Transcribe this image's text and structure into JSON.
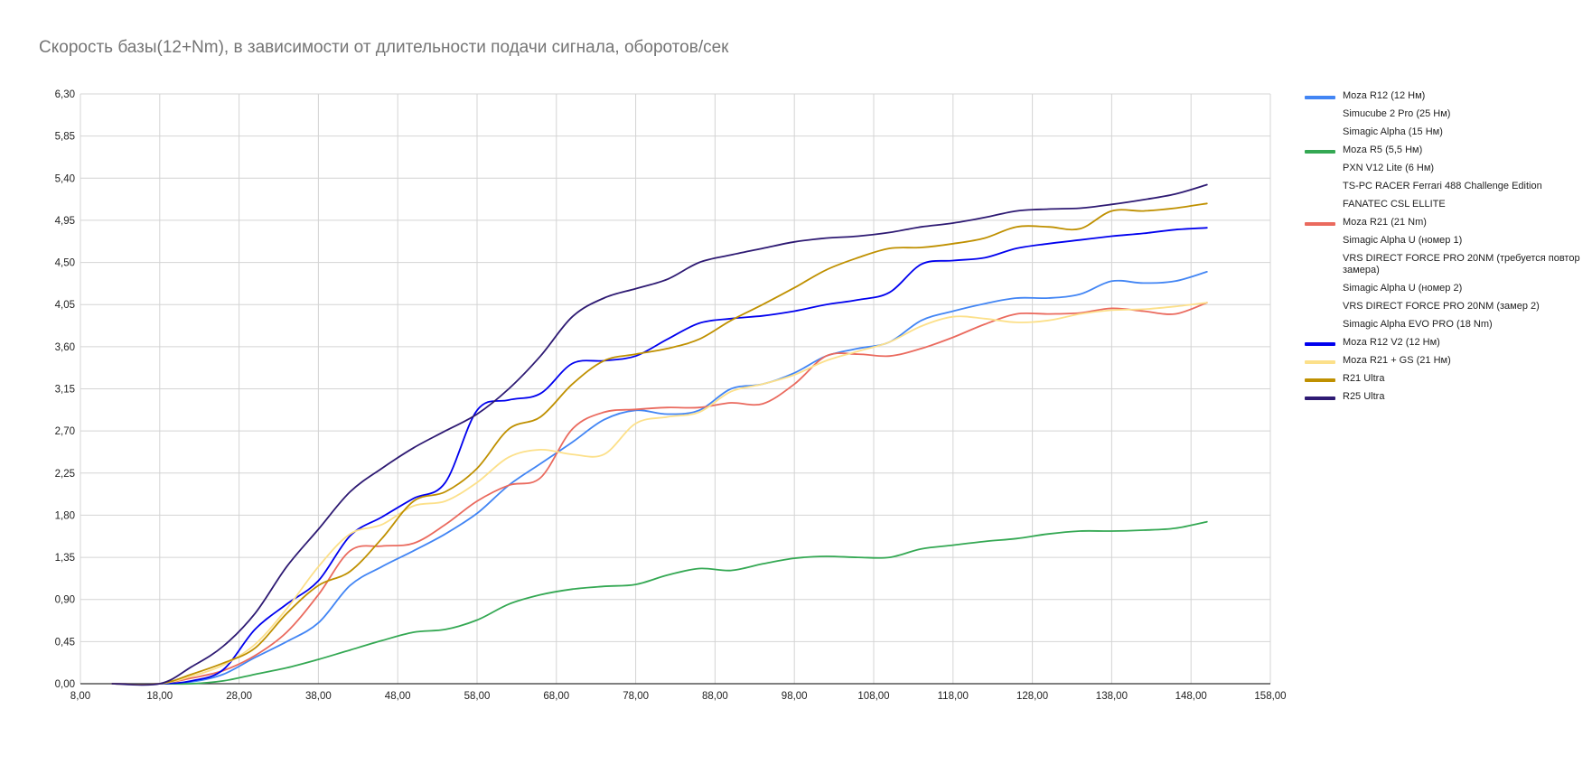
{
  "chart_data": {
    "type": "line",
    "title": "Скорость базы(12+Nm), в зависимости от длительности подачи сигнала, оборотов/сек",
    "xlabel": "",
    "ylabel": "",
    "xlim": [
      8,
      158
    ],
    "ylim": [
      0,
      6.3
    ],
    "x_ticks": [
      "8,00",
      "18,00",
      "28,00",
      "38,00",
      "48,00",
      "58,00",
      "68,00",
      "78,00",
      "88,00",
      "98,00",
      "108,00",
      "118,00",
      "128,00",
      "138,00",
      "148,00",
      "158,00"
    ],
    "y_ticks": [
      "0,00",
      "0,45",
      "0,90",
      "1,35",
      "1,80",
      "2,25",
      "2,70",
      "3,15",
      "3,60",
      "4,05",
      "4,50",
      "4,95",
      "5,40",
      "5,85",
      "6,30"
    ],
    "grid": true,
    "legend_position": "right",
    "series": [
      {
        "name": "Moza R12 (12 Нм)",
        "color": "#4285f4",
        "points": [
          [
            12,
            0
          ],
          [
            18,
            0
          ],
          [
            22,
            0.02
          ],
          [
            26,
            0.1
          ],
          [
            30,
            0.28
          ],
          [
            34,
            0.45
          ],
          [
            38,
            0.65
          ],
          [
            42,
            1.05
          ],
          [
            46,
            1.25
          ],
          [
            50,
            1.42
          ],
          [
            54,
            1.6
          ],
          [
            58,
            1.82
          ],
          [
            62,
            2.12
          ],
          [
            66,
            2.35
          ],
          [
            70,
            2.58
          ],
          [
            74,
            2.82
          ],
          [
            78,
            2.92
          ],
          [
            82,
            2.88
          ],
          [
            86,
            2.92
          ],
          [
            90,
            3.15
          ],
          [
            94,
            3.2
          ],
          [
            98,
            3.32
          ],
          [
            102,
            3.5
          ],
          [
            106,
            3.58
          ],
          [
            110,
            3.65
          ],
          [
            114,
            3.88
          ],
          [
            118,
            3.98
          ],
          [
            122,
            4.06
          ],
          [
            126,
            4.12
          ],
          [
            130,
            4.12
          ],
          [
            134,
            4.16
          ],
          [
            138,
            4.3
          ],
          [
            142,
            4.28
          ],
          [
            146,
            4.3
          ],
          [
            150,
            4.4
          ]
        ]
      },
      {
        "name": "Simucube 2 Pro (25 Нм)",
        "color": "",
        "points": []
      },
      {
        "name": "Simagic Alpha (15 Нм)",
        "color": "",
        "points": []
      },
      {
        "name": "Moza R5 (5,5 Нм)",
        "color": "#34a853",
        "points": [
          [
            12,
            0
          ],
          [
            18,
            0
          ],
          [
            22,
            0
          ],
          [
            26,
            0.03
          ],
          [
            30,
            0.1
          ],
          [
            34,
            0.17
          ],
          [
            38,
            0.26
          ],
          [
            42,
            0.36
          ],
          [
            46,
            0.46
          ],
          [
            50,
            0.55
          ],
          [
            54,
            0.58
          ],
          [
            58,
            0.68
          ],
          [
            62,
            0.85
          ],
          [
            66,
            0.95
          ],
          [
            70,
            1.01
          ],
          [
            74,
            1.04
          ],
          [
            78,
            1.06
          ],
          [
            82,
            1.16
          ],
          [
            86,
            1.23
          ],
          [
            90,
            1.21
          ],
          [
            94,
            1.28
          ],
          [
            98,
            1.34
          ],
          [
            102,
            1.36
          ],
          [
            106,
            1.35
          ],
          [
            110,
            1.35
          ],
          [
            114,
            1.44
          ],
          [
            118,
            1.48
          ],
          [
            122,
            1.52
          ],
          [
            126,
            1.55
          ],
          [
            130,
            1.6
          ],
          [
            134,
            1.63
          ],
          [
            138,
            1.63
          ],
          [
            142,
            1.64
          ],
          [
            146,
            1.66
          ],
          [
            150,
            1.73
          ]
        ]
      },
      {
        "name": "PXN V12 Lite (6 Нм)",
        "color": "",
        "points": []
      },
      {
        "name": "TS-PC RACER Ferrari 488 Challenge Edition",
        "color": "",
        "points": []
      },
      {
        "name": "FANATEC CSL ELLITE",
        "color": "",
        "points": []
      },
      {
        "name": "Moza R21 (21 Nm)",
        "color": "#ea6a5e",
        "points": [
          [
            12,
            0
          ],
          [
            18,
            0
          ],
          [
            22,
            0.06
          ],
          [
            26,
            0.14
          ],
          [
            30,
            0.3
          ],
          [
            34,
            0.55
          ],
          [
            38,
            0.95
          ],
          [
            42,
            1.42
          ],
          [
            46,
            1.47
          ],
          [
            50,
            1.5
          ],
          [
            54,
            1.7
          ],
          [
            58,
            1.95
          ],
          [
            62,
            2.12
          ],
          [
            66,
            2.2
          ],
          [
            70,
            2.72
          ],
          [
            74,
            2.9
          ],
          [
            78,
            2.93
          ],
          [
            82,
            2.95
          ],
          [
            86,
            2.95
          ],
          [
            90,
            3.0
          ],
          [
            94,
            2.99
          ],
          [
            98,
            3.2
          ],
          [
            102,
            3.5
          ],
          [
            106,
            3.52
          ],
          [
            110,
            3.5
          ],
          [
            114,
            3.58
          ],
          [
            118,
            3.7
          ],
          [
            122,
            3.84
          ],
          [
            126,
            3.95
          ],
          [
            130,
            3.95
          ],
          [
            134,
            3.96
          ],
          [
            138,
            4.01
          ],
          [
            142,
            3.98
          ],
          [
            146,
            3.95
          ],
          [
            150,
            4.07
          ]
        ]
      },
      {
        "name": "Simagic Alpha U (номер 1)",
        "color": "",
        "points": []
      },
      {
        "name": "VRS DIRECT FORCE PRO 20NM (требуется повтор замера)",
        "color": "",
        "points": []
      },
      {
        "name": "Simagic Alpha U (номер 2)",
        "color": "",
        "points": []
      },
      {
        "name": "VRS DIRECT FORCE PRO 20NM (замер 2)",
        "color": "",
        "points": []
      },
      {
        "name": "Simagic Alpha EVO PRO (18 Nm)",
        "color": "",
        "points": []
      },
      {
        "name": "Moza R12 V2 (12 Нм)",
        "color": "#0000ee",
        "points": [
          [
            12,
            0
          ],
          [
            18,
            0
          ],
          [
            22,
            0.03
          ],
          [
            26,
            0.15
          ],
          [
            30,
            0.58
          ],
          [
            34,
            0.85
          ],
          [
            38,
            1.1
          ],
          [
            42,
            1.58
          ],
          [
            46,
            1.78
          ],
          [
            50,
            1.98
          ],
          [
            54,
            2.15
          ],
          [
            58,
            2.92
          ],
          [
            62,
            3.03
          ],
          [
            66,
            3.1
          ],
          [
            70,
            3.42
          ],
          [
            74,
            3.45
          ],
          [
            78,
            3.5
          ],
          [
            82,
            3.68
          ],
          [
            86,
            3.85
          ],
          [
            90,
            3.9
          ],
          [
            94,
            3.93
          ],
          [
            98,
            3.98
          ],
          [
            102,
            4.05
          ],
          [
            106,
            4.1
          ],
          [
            110,
            4.18
          ],
          [
            114,
            4.48
          ],
          [
            118,
            4.52
          ],
          [
            122,
            4.55
          ],
          [
            126,
            4.65
          ],
          [
            130,
            4.7
          ],
          [
            134,
            4.74
          ],
          [
            138,
            4.78
          ],
          [
            142,
            4.81
          ],
          [
            146,
            4.85
          ],
          [
            150,
            4.87
          ]
        ]
      },
      {
        "name": "Moza R21 + GS  (21 Нм)",
        "color": "#fce08a",
        "points": [
          [
            12,
            0
          ],
          [
            18,
            0
          ],
          [
            22,
            0.08
          ],
          [
            26,
            0.2
          ],
          [
            30,
            0.42
          ],
          [
            34,
            0.8
          ],
          [
            38,
            1.25
          ],
          [
            42,
            1.6
          ],
          [
            46,
            1.7
          ],
          [
            50,
            1.9
          ],
          [
            54,
            1.95
          ],
          [
            58,
            2.15
          ],
          [
            62,
            2.42
          ],
          [
            66,
            2.5
          ],
          [
            70,
            2.45
          ],
          [
            74,
            2.45
          ],
          [
            78,
            2.78
          ],
          [
            82,
            2.85
          ],
          [
            86,
            2.9
          ],
          [
            90,
            3.12
          ],
          [
            94,
            3.2
          ],
          [
            98,
            3.3
          ],
          [
            102,
            3.45
          ],
          [
            106,
            3.55
          ],
          [
            110,
            3.65
          ],
          [
            114,
            3.82
          ],
          [
            118,
            3.92
          ],
          [
            122,
            3.9
          ],
          [
            126,
            3.86
          ],
          [
            130,
            3.88
          ],
          [
            134,
            3.95
          ],
          [
            138,
            3.99
          ],
          [
            142,
            4.0
          ],
          [
            146,
            4.03
          ],
          [
            150,
            4.07
          ]
        ]
      },
      {
        "name": "R21 Ultra",
        "color": "#bf9000",
        "points": [
          [
            12,
            0
          ],
          [
            18,
            0
          ],
          [
            22,
            0.1
          ],
          [
            26,
            0.22
          ],
          [
            30,
            0.38
          ],
          [
            34,
            0.75
          ],
          [
            38,
            1.05
          ],
          [
            42,
            1.2
          ],
          [
            46,
            1.55
          ],
          [
            50,
            1.95
          ],
          [
            54,
            2.05
          ],
          [
            58,
            2.3
          ],
          [
            62,
            2.72
          ],
          [
            66,
            2.85
          ],
          [
            70,
            3.2
          ],
          [
            74,
            3.45
          ],
          [
            78,
            3.52
          ],
          [
            82,
            3.58
          ],
          [
            86,
            3.68
          ],
          [
            90,
            3.88
          ],
          [
            94,
            4.05
          ],
          [
            98,
            4.23
          ],
          [
            102,
            4.42
          ],
          [
            106,
            4.55
          ],
          [
            110,
            4.65
          ],
          [
            114,
            4.66
          ],
          [
            118,
            4.7
          ],
          [
            122,
            4.76
          ],
          [
            126,
            4.88
          ],
          [
            130,
            4.88
          ],
          [
            134,
            4.86
          ],
          [
            138,
            5.05
          ],
          [
            142,
            5.05
          ],
          [
            146,
            5.08
          ],
          [
            150,
            5.13
          ]
        ]
      },
      {
        "name": "R25 Ultra",
        "color": "#2e1a73",
        "points": [
          [
            12,
            0
          ],
          [
            18,
            0
          ],
          [
            22,
            0.18
          ],
          [
            26,
            0.4
          ],
          [
            30,
            0.75
          ],
          [
            34,
            1.25
          ],
          [
            38,
            1.65
          ],
          [
            42,
            2.05
          ],
          [
            46,
            2.3
          ],
          [
            50,
            2.52
          ],
          [
            54,
            2.7
          ],
          [
            58,
            2.88
          ],
          [
            62,
            3.15
          ],
          [
            66,
            3.5
          ],
          [
            70,
            3.92
          ],
          [
            74,
            4.12
          ],
          [
            78,
            4.22
          ],
          [
            82,
            4.32
          ],
          [
            86,
            4.5
          ],
          [
            90,
            4.58
          ],
          [
            94,
            4.65
          ],
          [
            98,
            4.72
          ],
          [
            102,
            4.76
          ],
          [
            106,
            4.78
          ],
          [
            110,
            4.82
          ],
          [
            114,
            4.88
          ],
          [
            118,
            4.92
          ],
          [
            122,
            4.98
          ],
          [
            126,
            5.05
          ],
          [
            130,
            5.07
          ],
          [
            134,
            5.08
          ],
          [
            138,
            5.12
          ],
          [
            142,
            5.17
          ],
          [
            146,
            5.23
          ],
          [
            150,
            5.33
          ]
        ]
      }
    ]
  }
}
